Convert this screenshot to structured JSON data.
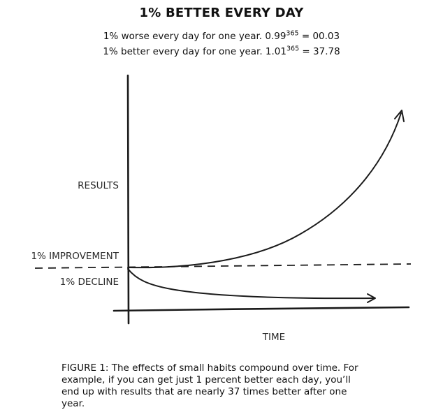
{
  "header": {
    "title": "1% BETTER EVERY DAY",
    "worse": {
      "text": "1% worse every day for one year. 0.99",
      "exponent": "365",
      "result": " = 00.03"
    },
    "better": {
      "text": "1% better every day for one year. 1.01",
      "exponent": "365",
      "result": " = 37.78"
    }
  },
  "diagram": {
    "y_axis_label": "RESULTS",
    "x_axis_label": "TIME",
    "improvement_label": "1% IMPROVEMENT",
    "decline_label": "1% DECLINE",
    "colors": {
      "ink": "#1a1a1a"
    }
  },
  "caption": "FIGURE 1: The effects of small habits compound over time. For example, if you can get just 1 percent better each day, you’ll end up with results that are nearly 37 times better after one year."
}
